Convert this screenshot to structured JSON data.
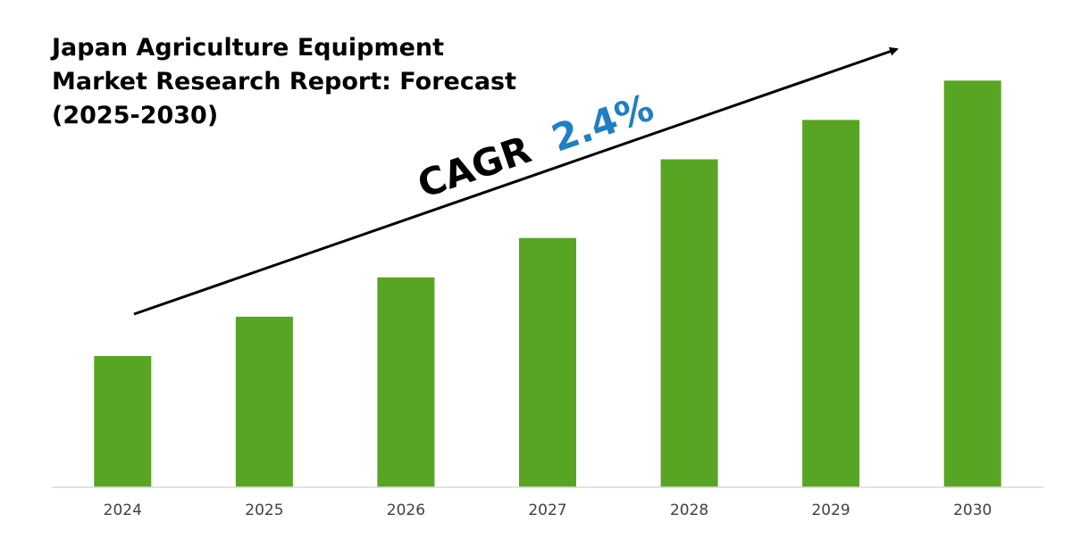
{
  "chart_data": {
    "type": "bar",
    "title_lines": [
      "Japan Agriculture Equipment",
      "Market Research Report: Forecast",
      "(2025-2030)"
    ],
    "categories": [
      "2024",
      "2025",
      "2026",
      "2027",
      "2028",
      "2029",
      "2030"
    ],
    "values": [
      30,
      39,
      48,
      57,
      75,
      84,
      93
    ],
    "ylim": [
      0,
      100
    ],
    "xlabel": "",
    "ylabel": "",
    "grid": false,
    "legend": "none",
    "bar_color": "#58a523",
    "annotation": {
      "prefix": "CAGR",
      "value": "2.4%",
      "prefix_color": "#000000",
      "value_color": "#1e7fc2"
    }
  }
}
